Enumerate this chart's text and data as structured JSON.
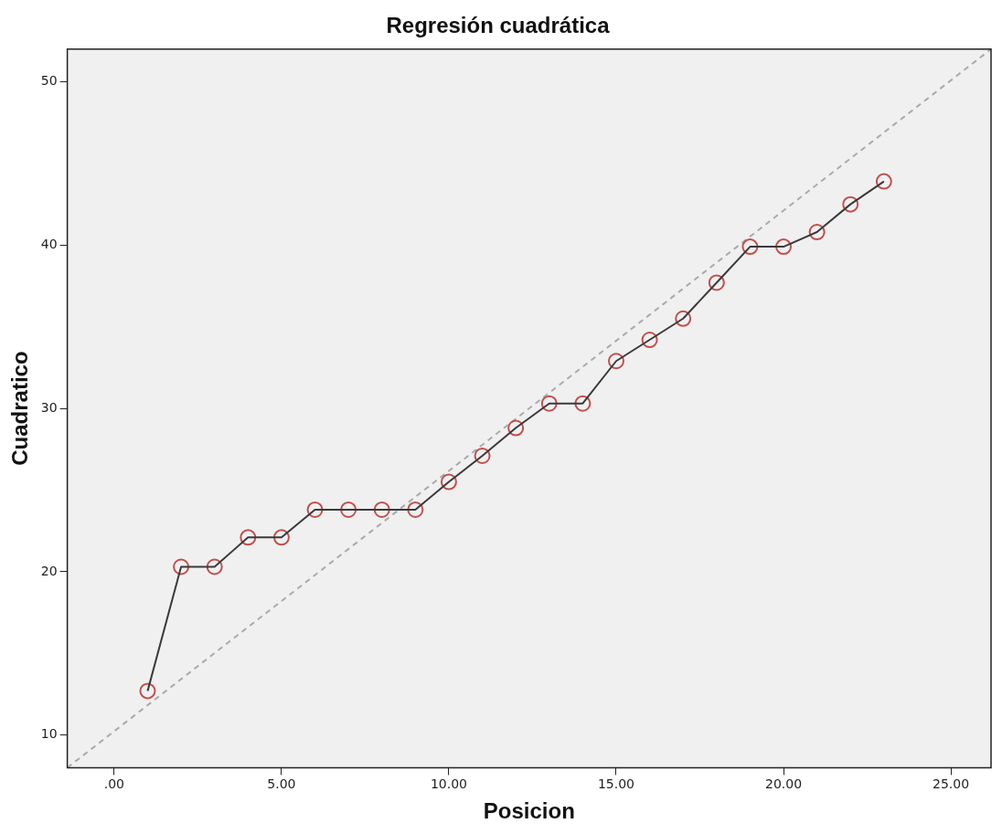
{
  "chart_data": {
    "type": "line",
    "title": "Regresión cuadrática",
    "xlabel": "Posicion",
    "ylabel": "Cuadratico",
    "x": [
      1,
      2,
      3,
      4,
      5,
      6,
      7,
      8,
      9,
      10,
      11,
      12,
      13,
      14,
      15,
      16,
      17,
      18,
      19,
      20,
      21,
      22,
      23
    ],
    "series": [
      {
        "color": "#3a3a3a",
        "marker": "none",
        "line_style": "solid",
        "values": [
          12.7,
          20.3,
          20.3,
          22.1,
          22.1,
          23.8,
          23.8,
          23.8,
          23.8,
          25.5,
          27.1,
          28.8,
          30.3,
          30.3,
          32.9,
          34.2,
          35.5,
          37.7,
          39.9,
          39.9,
          40.8,
          42.5,
          43.9
        ]
      },
      {
        "type": "scatter",
        "color": "#c0504d",
        "marker": "circle",
        "values": [
          12.7,
          20.3,
          20.3,
          22.1,
          22.1,
          23.8,
          23.8,
          23.8,
          23.8,
          25.5,
          27.1,
          28.8,
          30.3,
          30.3,
          32.9,
          34.2,
          35.5,
          37.7,
          39.9,
          39.9,
          40.8,
          42.5,
          43.9
        ]
      },
      {
        "color": "#aaaaaa",
        "marker": "none",
        "line_style": "dashed",
        "x": [
          -1.4,
          26.2
        ],
        "values": [
          8,
          52
        ]
      }
    ],
    "xlim": [
      -1.4,
      26.2
    ],
    "ylim": [
      8,
      52
    ],
    "xticks": [
      {
        "value": 0,
        "label": ".00"
      },
      {
        "value": 5,
        "label": "5.00"
      },
      {
        "value": 10,
        "label": "10.00"
      },
      {
        "value": 15,
        "label": "15.00"
      },
      {
        "value": 20,
        "label": "20.00"
      },
      {
        "value": 25,
        "label": "25.00"
      }
    ],
    "yticks": [
      10,
      20,
      30,
      40,
      50
    ],
    "grid": false,
    "legend": false
  }
}
